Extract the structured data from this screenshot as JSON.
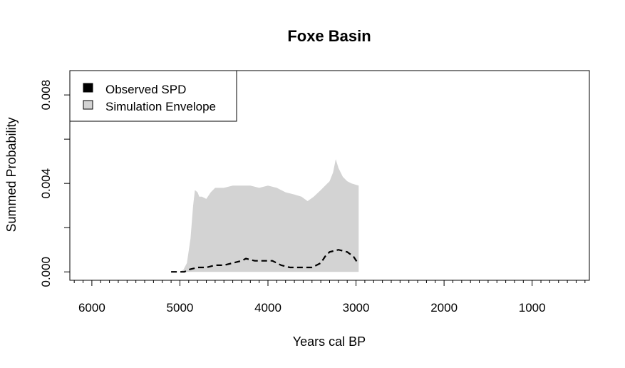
{
  "chart_data": {
    "type": "area",
    "title": "Foxe Basin",
    "xlabel": "Years cal BP",
    "ylabel": "Summed Probability",
    "x_reversed": true,
    "xlim": [
      6250,
      350
    ],
    "ylim": [
      -0.00038,
      0.0091
    ],
    "x_ticks": [
      6000,
      5000,
      4000,
      3000,
      2000,
      1000
    ],
    "x_tick_labels": [
      "6000",
      "5000",
      "4000",
      "3000",
      "2000",
      "1000"
    ],
    "y_ticks": [
      0.0,
      0.002,
      0.004,
      0.006,
      0.008
    ],
    "y_tick_labels": [
      "0.000",
      "",
      "0.004",
      "",
      "0.008"
    ],
    "grid": false,
    "legend": {
      "position": "top-left",
      "items": [
        {
          "label": "Observed SPD",
          "color": "#000000"
        },
        {
          "label": "Simulation Envelope",
          "color": "#d3d3d3"
        }
      ]
    },
    "series": [
      {
        "name": "Simulation Envelope",
        "color": "#d3d3d3",
        "upper": [
          [
            5000,
            0.0
          ],
          [
            4960,
            0.0001
          ],
          [
            4920,
            0.0004
          ],
          [
            4880,
            0.0015
          ],
          [
            4850,
            0.003
          ],
          [
            4830,
            0.0037
          ],
          [
            4800,
            0.0036
          ],
          [
            4780,
            0.0034
          ],
          [
            4750,
            0.0034
          ],
          [
            4700,
            0.0033
          ],
          [
            4650,
            0.0036
          ],
          [
            4600,
            0.0038
          ],
          [
            4500,
            0.0038
          ],
          [
            4400,
            0.0039
          ],
          [
            4300,
            0.0039
          ],
          [
            4200,
            0.0039
          ],
          [
            4100,
            0.0038
          ],
          [
            4000,
            0.0039
          ],
          [
            3900,
            0.0038
          ],
          [
            3800,
            0.0036
          ],
          [
            3700,
            0.0035
          ],
          [
            3620,
            0.0034
          ],
          [
            3550,
            0.0032
          ],
          [
            3480,
            0.0034
          ],
          [
            3400,
            0.0037
          ],
          [
            3350,
            0.0039
          ],
          [
            3300,
            0.0041
          ],
          [
            3260,
            0.0045
          ],
          [
            3230,
            0.0051
          ],
          [
            3200,
            0.0047
          ],
          [
            3150,
            0.0043
          ],
          [
            3100,
            0.0041
          ],
          [
            3050,
            0.004
          ],
          [
            2970,
            0.0039
          ],
          [
            2970,
            0.0
          ]
        ]
      },
      {
        "name": "Observed SPD",
        "color": "#000000",
        "dashed": true,
        "points": [
          [
            5100,
            0.0
          ],
          [
            4950,
            0.0
          ],
          [
            4900,
            0.0001
          ],
          [
            4800,
            0.0002
          ],
          [
            4700,
            0.0002
          ],
          [
            4600,
            0.0003
          ],
          [
            4500,
            0.0003
          ],
          [
            4400,
            0.0004
          ],
          [
            4300,
            0.0005
          ],
          [
            4250,
            0.0006
          ],
          [
            4150,
            0.0005
          ],
          [
            4050,
            0.0005
          ],
          [
            3950,
            0.0005
          ],
          [
            3850,
            0.0003
          ],
          [
            3750,
            0.0002
          ],
          [
            3600,
            0.0002
          ],
          [
            3500,
            0.0002
          ],
          [
            3400,
            0.0004
          ],
          [
            3350,
            0.0007
          ],
          [
            3300,
            0.0009
          ],
          [
            3200,
            0.001
          ],
          [
            3100,
            0.0009
          ],
          [
            3030,
            0.0007
          ],
          [
            2980,
            0.0004
          ]
        ]
      }
    ]
  }
}
